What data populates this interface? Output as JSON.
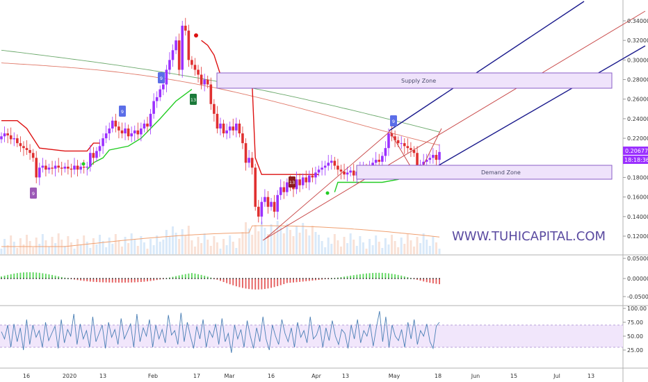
{
  "watermark": "WWW.TUHICAPITAL.COM",
  "zones": {
    "supply_label": "Supply Zone",
    "demand_label": "Demand Zone"
  },
  "last_price": {
    "price": "0.20677",
    "countdown": "18:18:36"
  },
  "badges": [
    {
      "id": "badge-9-jan",
      "text": "9",
      "dir": "up",
      "color": "#9b59b6"
    },
    {
      "id": "badge-9-jan2",
      "text": "9",
      "dir": "down",
      "color": "#5b6ee8"
    },
    {
      "id": "badge-9-feb",
      "text": "9",
      "dir": "down",
      "color": "#5b6ee8"
    },
    {
      "id": "badge-13-feb",
      "text": "13",
      "dir": "up",
      "color": "#1b7a3a"
    },
    {
      "id": "badge-13-apr",
      "text": "13",
      "dir": "down",
      "color": "#8a1c1c"
    },
    {
      "id": "badge-9-may",
      "text": "9",
      "dir": "down",
      "color": "#5b6ee8"
    }
  ],
  "colors": {
    "bull": "#9b30ff",
    "bear": "#e03030",
    "supertrend_up": "#22cc22",
    "supertrend_down": "#dd1111",
    "zone_fill": "#efe3fb",
    "zone_border": "#8a5cc7",
    "channel_blue": "#1a1a8c",
    "channel_mid": "#c84848",
    "ma_green": "#6aa86a",
    "ma_red": "#e07a6a",
    "hist_green": "#33cc33",
    "hist_red": "#dd3333",
    "rsi_line": "#4a7fb5",
    "rsi_band": "#f1e6fb"
  },
  "chart_data": [
    {
      "type": "candlestick",
      "title": "",
      "x_ticks": [
        "16",
        "2020",
        "13",
        "Feb",
        "17",
        "Mar",
        "16",
        "Apr",
        "13",
        "May",
        "18",
        "Jun",
        "15",
        "Jul",
        "13"
      ],
      "y_ticks": [
        "0.34000",
        "0.32000",
        "0.30000",
        "0.28000",
        "0.26000",
        "0.24000",
        "0.22000",
        "0.20000",
        "0.18000",
        "0.16000",
        "0.14000",
        "0.12000"
      ],
      "ylim": [
        0.11,
        0.35
      ],
      "close": [
        0.222,
        0.225,
        0.223,
        0.219,
        0.22,
        0.215,
        0.212,
        0.21,
        0.208,
        0.205,
        0.2,
        0.18,
        0.19,
        0.192,
        0.188,
        0.19,
        0.189,
        0.192,
        0.19,
        0.189,
        0.191,
        0.189,
        0.188,
        0.192,
        0.188,
        0.191,
        0.19,
        0.191,
        0.205,
        0.2,
        0.207,
        0.212,
        0.22,
        0.225,
        0.23,
        0.238,
        0.232,
        0.228,
        0.225,
        0.23,
        0.222,
        0.225,
        0.228,
        0.224,
        0.23,
        0.235,
        0.232,
        0.245,
        0.258,
        0.262,
        0.27,
        0.275,
        0.29,
        0.3,
        0.31,
        0.32,
        0.29,
        0.335,
        0.33,
        0.3,
        0.295,
        0.29,
        0.285,
        0.275,
        0.28,
        0.275,
        0.255,
        0.245,
        0.23,
        0.235,
        0.225,
        0.228,
        0.232,
        0.228,
        0.235,
        0.225,
        0.215,
        0.195,
        0.2,
        0.19,
        0.15,
        0.14,
        0.155,
        0.16,
        0.15,
        0.155,
        0.145,
        0.162,
        0.17,
        0.165,
        0.175,
        0.172,
        0.168,
        0.178,
        0.172,
        0.18,
        0.175,
        0.182,
        0.18,
        0.185,
        0.188,
        0.19,
        0.192,
        0.195,
        0.197,
        0.192,
        0.188,
        0.186,
        0.183,
        0.185,
        0.187,
        0.182,
        0.186,
        0.188,
        0.19,
        0.186,
        0.19,
        0.195,
        0.198,
        0.196,
        0.202,
        0.21,
        0.225,
        0.222,
        0.218,
        0.215,
        0.215,
        0.212,
        0.21,
        0.208,
        0.205,
        0.192,
        0.193,
        0.196,
        0.198,
        0.2,
        0.203,
        0.198,
        0.206
      ],
      "volume_ma": "orange line",
      "annotations": [
        "Supply Zone",
        "Demand Zone"
      ]
    },
    {
      "type": "bar",
      "title": "",
      "y_ticks": [
        "0.05000",
        "0.00000",
        "-0.05000"
      ],
      "ylim": [
        -0.075,
        0.06
      ]
    },
    {
      "type": "line",
      "title": "",
      "y_ticks": [
        "100.00",
        "75.00",
        "50.00",
        "25.00"
      ],
      "ylim": [
        0,
        100
      ],
      "band": [
        30,
        70
      ],
      "values": [
        58,
        45,
        70,
        30,
        72,
        40,
        65,
        25,
        80,
        35,
        70,
        48,
        60,
        30,
        75,
        42,
        55,
        68,
        28,
        80,
        38,
        62,
        50,
        90,
        35,
        72,
        45,
        60,
        30,
        85,
        40,
        55,
        70,
        28,
        75,
        48,
        62,
        35,
        82,
        45,
        58,
        72,
        30,
        90,
        40,
        65,
        50,
        80,
        30,
        70,
        45,
        62,
        38,
        88,
        52,
        60,
        35,
        92,
        40,
        75,
        50,
        28,
        68,
        45,
        80,
        30,
        60,
        48,
        72,
        35,
        82,
        40,
        55,
        20,
        70,
        45,
        62,
        30,
        78,
        50,
        28,
        65,
        40,
        85,
        45,
        25,
        70,
        50,
        35,
        80,
        55,
        40,
        65,
        30,
        75,
        48,
        60,
        38,
        85,
        45,
        52,
        70,
        30,
        65,
        42,
        78,
        50,
        35,
        62,
        55,
        28,
        70,
        45,
        80,
        38,
        60,
        50,
        72,
        32,
        66,
        95,
        40,
        85,
        30,
        70,
        50,
        42,
        62,
        30,
        75,
        45,
        80,
        35,
        60,
        50,
        72,
        40,
        28,
        68,
        75
      ]
    }
  ]
}
